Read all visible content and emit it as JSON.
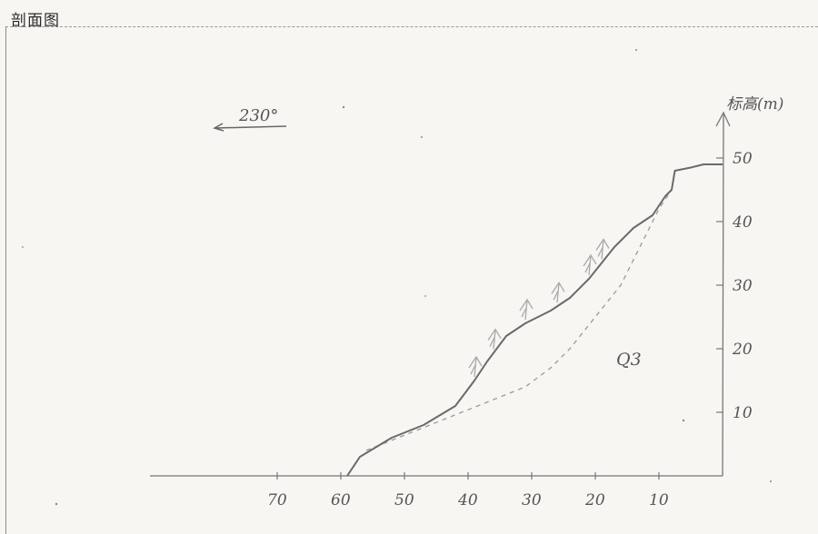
{
  "title": "剖面图",
  "direction": {
    "label": "230°"
  },
  "axes": {
    "y_title": "标高(m)",
    "y_ticks": [
      {
        "value": 10,
        "label": "10"
      },
      {
        "value": 20,
        "label": "20"
      },
      {
        "value": 30,
        "label": "30"
      },
      {
        "value": 40,
        "label": "40"
      },
      {
        "value": 50,
        "label": "50"
      }
    ],
    "x_ticks": [
      {
        "value": 70,
        "label": "70"
      },
      {
        "value": 60,
        "label": "60"
      },
      {
        "value": 50,
        "label": "50"
      },
      {
        "value": 40,
        "label": "40"
      },
      {
        "value": 30,
        "label": "30"
      },
      {
        "value": 20,
        "label": "20"
      },
      {
        "value": 10,
        "label": "10"
      }
    ]
  },
  "layer_label": "Q3",
  "profile": {
    "ground": [
      [
        59,
        0
      ],
      [
        57,
        3
      ],
      [
        52,
        6
      ],
      [
        47,
        8
      ],
      [
        42,
        11
      ],
      [
        39,
        15
      ],
      [
        37,
        18
      ],
      [
        34,
        22
      ],
      [
        31,
        24
      ],
      [
        27,
        26
      ],
      [
        24,
        28
      ],
      [
        21,
        31
      ],
      [
        17,
        36
      ],
      [
        14,
        39
      ],
      [
        11,
        41
      ],
      [
        9,
        44
      ],
      [
        8,
        45
      ],
      [
        7.5,
        48
      ],
      [
        5,
        48.5
      ],
      [
        3,
        49
      ],
      [
        0,
        49
      ]
    ],
    "bedrock": [
      [
        56,
        4
      ],
      [
        51,
        6
      ],
      [
        46,
        8
      ],
      [
        41,
        10
      ],
      [
        36,
        12
      ],
      [
        31,
        14
      ],
      [
        27,
        17
      ],
      [
        24,
        20
      ],
      [
        20,
        25
      ],
      [
        16,
        30
      ],
      [
        13,
        36
      ],
      [
        10,
        42
      ],
      [
        8,
        45
      ]
    ]
  },
  "colors": {
    "ground": "#6a6a6a",
    "bedrock": "#9a9a9a",
    "trees": "#a9a9a9",
    "axis": "#777777"
  }
}
